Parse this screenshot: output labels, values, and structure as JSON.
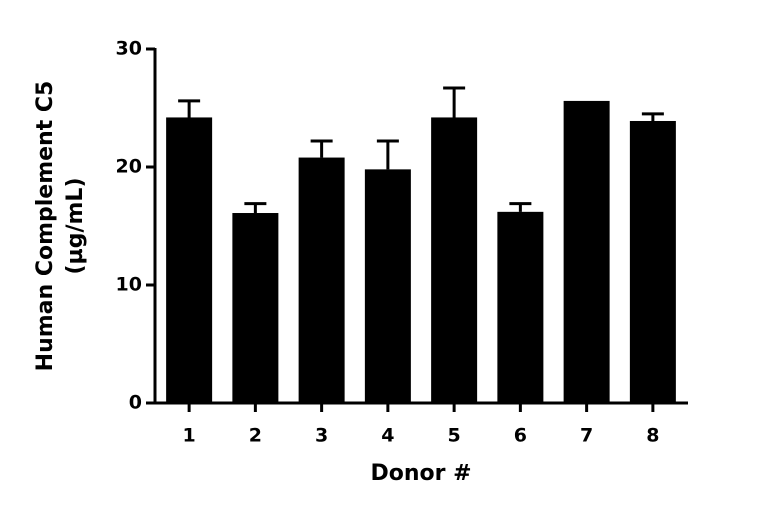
{
  "chart_data": {
    "type": "bar",
    "y_label_lines": [
      "Human Complement C5",
      "(µg/mL)"
    ],
    "x_label": "Donor #",
    "categories": [
      "1",
      "2",
      "3",
      "4",
      "5",
      "6",
      "7",
      "8"
    ],
    "values": [
      24.2,
      16.1,
      20.8,
      19.8,
      24.2,
      16.2,
      25.6,
      23.9
    ],
    "errors": [
      1.4,
      0.8,
      1.4,
      2.4,
      2.5,
      0.7,
      0,
      0.6
    ],
    "color": "#000000",
    "ylim": [
      0,
      30
    ],
    "yticks": [
      0,
      10,
      20,
      30
    ],
    "grid": false
  }
}
